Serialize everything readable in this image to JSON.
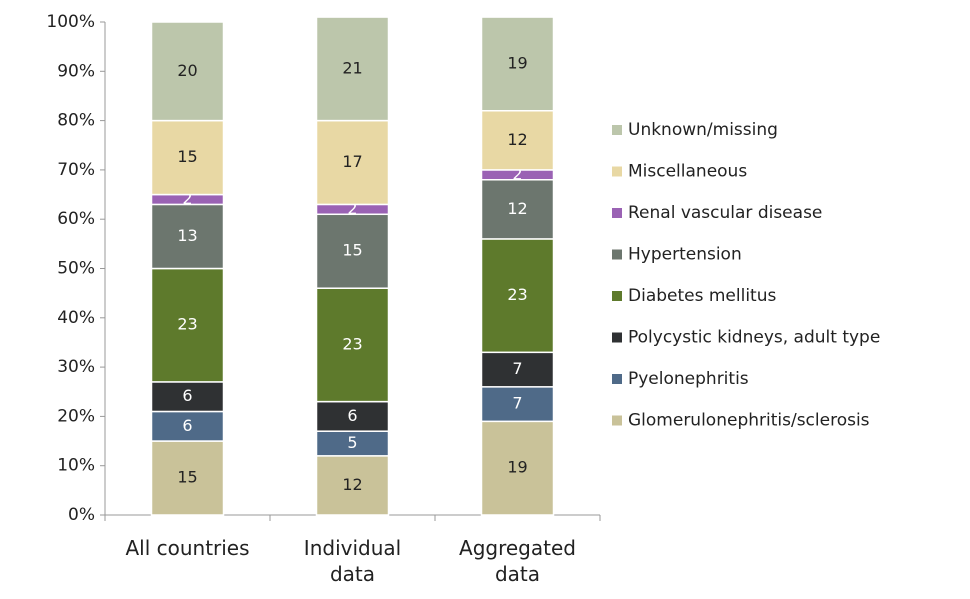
{
  "chart_data": {
    "type": "stacked_bar",
    "categories": [
      "All countries",
      "Individual data",
      "Aggregated data"
    ],
    "series": [
      {
        "name": "Glomerulonephritis/sclerosis",
        "color": "#c9c299",
        "values": [
          15,
          12,
          19
        ]
      },
      {
        "name": "Pyelonephritis",
        "color": "#4f6a88",
        "values": [
          6,
          5,
          7
        ]
      },
      {
        "name": "Polycystic kidneys, adult type",
        "color": "#2f3133",
        "values": [
          6,
          6,
          7
        ]
      },
      {
        "name": "Diabetes mellitus",
        "color": "#5e7a2c",
        "values": [
          23,
          23,
          23
        ]
      },
      {
        "name": "Hypertension",
        "color": "#6c766e",
        "values": [
          13,
          15,
          12
        ]
      },
      {
        "name": "Renal vascular disease",
        "color": "#9a62b4",
        "values": [
          2,
          2,
          2
        ]
      },
      {
        "name": "Miscellaneous",
        "color": "#e8d8a4",
        "values": [
          15,
          17,
          12
        ]
      },
      {
        "name": "Unknown/missing",
        "color": "#bcc6ab",
        "values": [
          20,
          21,
          19
        ]
      }
    ],
    "ylim": [
      0,
      100
    ],
    "yticks": [
      {
        "value": 0,
        "label": "0%"
      },
      {
        "value": 10,
        "label": "10%"
      },
      {
        "value": 20,
        "label": "20%"
      },
      {
        "value": 30,
        "label": "30%"
      },
      {
        "value": 40,
        "label": "40%"
      },
      {
        "value": 50,
        "label": "50%"
      },
      {
        "value": 60,
        "label": "60%"
      },
      {
        "value": 70,
        "label": "70%"
      },
      {
        "value": 80,
        "label": "80%"
      },
      {
        "value": 90,
        "label": "90%"
      },
      {
        "value": 100,
        "label": "100%"
      }
    ],
    "legend": "right"
  }
}
